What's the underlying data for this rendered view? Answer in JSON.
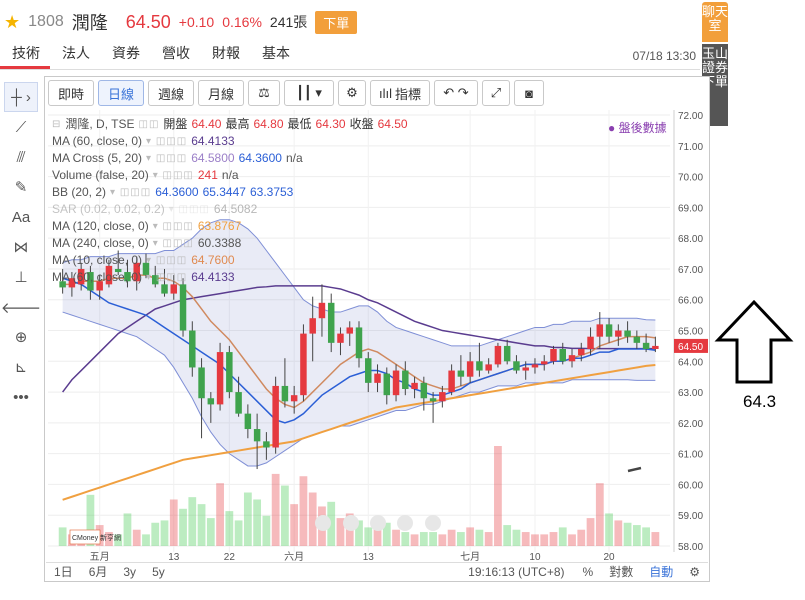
{
  "header": {
    "code": "1808",
    "name": "潤隆",
    "price": "64.50",
    "change": "+0.10",
    "change_pct": "0.16%",
    "volume": "241張",
    "order_label": "下單"
  },
  "tabs": [
    "技術",
    "法人",
    "資券",
    "營收",
    "財報",
    "基本"
  ],
  "datetime": "07/18 13:30",
  "side_tabs": {
    "chat": "聊天室",
    "order": "玉山證券下單"
  },
  "toolbar": {
    "intraday": "即時",
    "daily": "日線",
    "weekly": "週線",
    "monthly": "月線",
    "indicators": "指標"
  },
  "legend": {
    "main": {
      "label": "潤隆, D, TSE",
      "open_label": "開盤",
      "open": "64.40",
      "high_label": "最高",
      "high": "64.80",
      "low_label": "最低",
      "low": "64.30",
      "close_label": "收盤",
      "close": "64.50"
    },
    "ma60": {
      "label": "MA (60, close, 0)",
      "value": "64.4133"
    },
    "macross": {
      "label": "MA Cross (5, 20)",
      "v1": "64.5800",
      "v2": "64.3600",
      "v3": "n/a"
    },
    "volume": {
      "label": "Volume (false, 20)",
      "v1": "241",
      "v2": "n/a"
    },
    "bb": {
      "label": "BB (20, 2)",
      "v1": "64.3600",
      "v2": "65.3447",
      "v3": "63.3753"
    },
    "hidden": {
      "label": "SAR (0.02, 0.02, 0.2)",
      "value": "64.5082"
    },
    "ma120": {
      "label": "MA (120, close, 0)",
      "value": "63.8767"
    },
    "ma240": {
      "label": "MA (240, close, 0)",
      "value": "60.3388"
    },
    "ma10": {
      "label": "MA (10, close, 0)",
      "value": "64.7600"
    },
    "ma60b": {
      "label": "MA (60, close, 0)",
      "value": "64.4133"
    }
  },
  "after_hours": "盤後數據",
  "bottom": {
    "d1": "1日",
    "m6": "6月",
    "y3": "3y",
    "y5": "5y",
    "time": "19:16:13 (UTC+8)",
    "pct": "%",
    "log": "對數",
    "auto": "自動"
  },
  "annotation": "64.3",
  "watermark": "CMoney 新亨網",
  "colors": {
    "up": "#e5393f",
    "down": "#3fa34d",
    "accent": "#3a73d8",
    "bb": "#7f8fd6",
    "ma_purple": "#5a3c8f",
    "ma_blue": "#2b5fd6",
    "ma_orange": "#f0a040"
  },
  "chart_data": {
    "type": "candlestick",
    "y_ticks": [
      "72.00",
      "71.00",
      "70.00",
      "69.00",
      "68.00",
      "67.00",
      "66.00",
      "65.00",
      "64.00",
      "63.00",
      "62.00",
      "61.00",
      "60.00",
      "59.00",
      "58.00"
    ],
    "ylim": [
      58,
      72
    ],
    "x_ticks": [
      "五月",
      "13",
      "22",
      "六月",
      "13",
      "七月",
      "10",
      "20"
    ],
    "last_price_label": "64.50",
    "candles": [
      {
        "o": 66.6,
        "h": 67.0,
        "l": 66.2,
        "c": 66.4
      },
      {
        "o": 66.4,
        "h": 66.9,
        "l": 66.1,
        "c": 66.7
      },
      {
        "o": 66.5,
        "h": 67.2,
        "l": 66.3,
        "c": 67.0
      },
      {
        "o": 66.9,
        "h": 67.1,
        "l": 66.0,
        "c": 66.3
      },
      {
        "o": 66.3,
        "h": 66.8,
        "l": 66.0,
        "c": 66.6
      },
      {
        "o": 66.5,
        "h": 67.3,
        "l": 66.4,
        "c": 67.1
      },
      {
        "o": 67.0,
        "h": 67.6,
        "l": 66.8,
        "c": 66.9
      },
      {
        "o": 66.9,
        "h": 67.3,
        "l": 66.4,
        "c": 66.6
      },
      {
        "o": 66.6,
        "h": 67.4,
        "l": 66.3,
        "c": 67.2
      },
      {
        "o": 67.2,
        "h": 67.5,
        "l": 66.7,
        "c": 66.8
      },
      {
        "o": 66.8,
        "h": 67.1,
        "l": 66.4,
        "c": 66.5
      },
      {
        "o": 66.5,
        "h": 67.0,
        "l": 66.1,
        "c": 66.2
      },
      {
        "o": 66.2,
        "h": 66.8,
        "l": 66.0,
        "c": 66.5
      },
      {
        "o": 66.5,
        "h": 66.7,
        "l": 64.8,
        "c": 65.0
      },
      {
        "o": 65.0,
        "h": 65.3,
        "l": 63.5,
        "c": 63.8
      },
      {
        "o": 63.8,
        "h": 64.1,
        "l": 61.5,
        "c": 62.8
      },
      {
        "o": 62.8,
        "h": 63.0,
        "l": 62.0,
        "c": 62.6
      },
      {
        "o": 62.6,
        "h": 64.6,
        "l": 62.4,
        "c": 64.3
      },
      {
        "o": 64.3,
        "h": 64.5,
        "l": 62.8,
        "c": 63.0
      },
      {
        "o": 63.0,
        "h": 63.5,
        "l": 62.2,
        "c": 62.3
      },
      {
        "o": 62.3,
        "h": 62.6,
        "l": 61.5,
        "c": 61.8
      },
      {
        "o": 61.8,
        "h": 62.3,
        "l": 60.5,
        "c": 61.4
      },
      {
        "o": 61.4,
        "h": 61.7,
        "l": 60.8,
        "c": 61.2
      },
      {
        "o": 61.2,
        "h": 63.5,
        "l": 61.0,
        "c": 63.2
      },
      {
        "o": 63.2,
        "h": 64.1,
        "l": 62.5,
        "c": 62.7
      },
      {
        "o": 62.7,
        "h": 63.2,
        "l": 62.3,
        "c": 62.9
      },
      {
        "o": 62.9,
        "h": 65.2,
        "l": 62.7,
        "c": 64.9
      },
      {
        "o": 64.9,
        "h": 66.1,
        "l": 64.0,
        "c": 65.4
      },
      {
        "o": 65.4,
        "h": 66.5,
        "l": 64.8,
        "c": 65.9
      },
      {
        "o": 65.9,
        "h": 66.2,
        "l": 64.3,
        "c": 64.6
      },
      {
        "o": 64.6,
        "h": 65.1,
        "l": 64.2,
        "c": 64.9
      },
      {
        "o": 64.9,
        "h": 65.3,
        "l": 64.5,
        "c": 65.1
      },
      {
        "o": 65.1,
        "h": 65.3,
        "l": 63.8,
        "c": 64.1
      },
      {
        "o": 64.1,
        "h": 64.3,
        "l": 63.0,
        "c": 63.3
      },
      {
        "o": 63.3,
        "h": 63.9,
        "l": 63.0,
        "c": 63.6
      },
      {
        "o": 63.6,
        "h": 63.8,
        "l": 62.6,
        "c": 62.9
      },
      {
        "o": 62.9,
        "h": 63.9,
        "l": 62.7,
        "c": 63.7
      },
      {
        "o": 63.7,
        "h": 64.0,
        "l": 62.9,
        "c": 63.1
      },
      {
        "o": 63.1,
        "h": 63.5,
        "l": 62.8,
        "c": 63.3
      },
      {
        "o": 63.3,
        "h": 63.5,
        "l": 62.4,
        "c": 62.8
      },
      {
        "o": 62.8,
        "h": 63.0,
        "l": 62.0,
        "c": 62.7
      },
      {
        "o": 62.7,
        "h": 63.2,
        "l": 62.5,
        "c": 63.0
      },
      {
        "o": 63.0,
        "h": 63.9,
        "l": 62.9,
        "c": 63.7
      },
      {
        "o": 63.7,
        "h": 64.2,
        "l": 63.2,
        "c": 63.5
      },
      {
        "o": 63.5,
        "h": 64.3,
        "l": 63.3,
        "c": 64.0
      },
      {
        "o": 64.0,
        "h": 64.6,
        "l": 63.5,
        "c": 63.7
      },
      {
        "o": 63.7,
        "h": 64.1,
        "l": 63.6,
        "c": 63.9
      },
      {
        "o": 63.9,
        "h": 64.6,
        "l": 63.8,
        "c": 64.5
      },
      {
        "o": 64.5,
        "h": 64.7,
        "l": 63.9,
        "c": 64.0
      },
      {
        "o": 64.0,
        "h": 64.2,
        "l": 63.6,
        "c": 63.7
      },
      {
        "o": 63.7,
        "h": 64.0,
        "l": 63.4,
        "c": 63.8
      },
      {
        "o": 63.8,
        "h": 64.1,
        "l": 63.6,
        "c": 63.9
      },
      {
        "o": 63.9,
        "h": 64.2,
        "l": 63.7,
        "c": 64.0
      },
      {
        "o": 64.0,
        "h": 64.5,
        "l": 63.9,
        "c": 64.4
      },
      {
        "o": 64.4,
        "h": 64.6,
        "l": 63.9,
        "c": 64.0
      },
      {
        "o": 64.0,
        "h": 64.4,
        "l": 63.8,
        "c": 64.2
      },
      {
        "o": 64.2,
        "h": 64.6,
        "l": 64.0,
        "c": 64.4
      },
      {
        "o": 64.4,
        "h": 65.1,
        "l": 64.2,
        "c": 64.8
      },
      {
        "o": 64.8,
        "h": 65.6,
        "l": 64.4,
        "c": 65.2
      },
      {
        "o": 65.2,
        "h": 65.4,
        "l": 64.6,
        "c": 64.8
      },
      {
        "o": 64.8,
        "h": 65.2,
        "l": 64.5,
        "c": 65.0
      },
      {
        "o": 65.0,
        "h": 65.3,
        "l": 64.6,
        "c": 64.8
      },
      {
        "o": 64.8,
        "h": 65.0,
        "l": 64.4,
        "c": 64.6
      },
      {
        "o": 64.6,
        "h": 64.9,
        "l": 64.3,
        "c": 64.4
      },
      {
        "o": 64.4,
        "h": 64.8,
        "l": 64.3,
        "c": 64.5
      }
    ],
    "volumes": [
      0.8,
      0.5,
      0.6,
      2.2,
      0.9,
      0.6,
      0.5,
      1.4,
      0.7,
      0.5,
      1.0,
      1.1,
      2.0,
      1.6,
      2.1,
      1.8,
      1.2,
      2.7,
      1.5,
      1.1,
      2.3,
      2.0,
      1.3,
      3.1,
      2.6,
      1.8,
      3.0,
      2.3,
      1.7,
      1.9,
      1.2,
      1.4,
      1.1,
      0.8,
      0.9,
      1.0,
      0.7,
      0.6,
      0.5,
      0.6,
      0.6,
      0.5,
      0.7,
      0.6,
      0.8,
      0.7,
      0.6,
      4.3,
      0.9,
      0.7,
      0.6,
      0.5,
      0.5,
      0.6,
      0.8,
      0.5,
      0.7,
      1.2,
      2.7,
      1.4,
      1.1,
      1.0,
      0.9,
      0.8,
      0.6
    ],
    "series": [
      {
        "name": "MA (60, close, 0)",
        "values": [
          63.0,
          63.4,
          63.7,
          64.0,
          64.3,
          64.6,
          64.9,
          65.1,
          65.3,
          65.5,
          65.7,
          65.8,
          65.9,
          66.0,
          66.05,
          66.1,
          66.15,
          66.2,
          66.25,
          66.3,
          66.35,
          66.4,
          66.42,
          66.45,
          66.45,
          66.45,
          66.45,
          66.45,
          66.45,
          66.4,
          66.35,
          66.25,
          66.15,
          66.0,
          65.9,
          65.75,
          65.6,
          65.45,
          65.3,
          65.2,
          65.1,
          65.0,
          64.95,
          64.9,
          64.85,
          64.8,
          64.75,
          64.7,
          64.65,
          64.6,
          64.55,
          64.5,
          64.5,
          64.45,
          64.45,
          64.42,
          64.42,
          64.41,
          64.41,
          64.41,
          64.41,
          64.41,
          64.41,
          64.41,
          64.41
        ]
      },
      {
        "name": "MA (120, close, 0)",
        "values": [
          59.5,
          59.6,
          59.7,
          59.8,
          59.9,
          60.0,
          60.1,
          60.2,
          60.3,
          60.4,
          60.5,
          60.6,
          60.7,
          60.8,
          60.85,
          60.9,
          60.95,
          61.0,
          61.05,
          61.1,
          61.15,
          61.2,
          61.25,
          61.3,
          61.35,
          61.4,
          61.5,
          61.6,
          61.7,
          61.8,
          61.9,
          62.0,
          62.1,
          62.2,
          62.3,
          62.4,
          62.5,
          62.55,
          62.6,
          62.65,
          62.7,
          62.75,
          62.8,
          62.85,
          62.9,
          62.95,
          63.0,
          63.05,
          63.1,
          63.15,
          63.2,
          63.25,
          63.3,
          63.35,
          63.4,
          63.45,
          63.5,
          63.55,
          63.6,
          63.65,
          63.7,
          63.75,
          63.8,
          63.85,
          63.88
        ]
      },
      {
        "name": "MA (10, close, 0)",
        "values": [
          66.5,
          66.5,
          66.6,
          66.6,
          66.6,
          66.7,
          66.7,
          66.7,
          66.8,
          66.8,
          66.7,
          66.7,
          66.6,
          66.4,
          66.1,
          65.7,
          65.3,
          65.0,
          64.7,
          64.3,
          63.9,
          63.5,
          63.1,
          62.8,
          62.6,
          62.5,
          62.7,
          63.0,
          63.3,
          63.6,
          63.9,
          64.1,
          64.3,
          64.4,
          64.3,
          64.1,
          63.9,
          63.7,
          63.5,
          63.3,
          63.2,
          63.1,
          63.1,
          63.2,
          63.3,
          63.4,
          63.5,
          63.6,
          63.7,
          63.8,
          63.9,
          63.9,
          63.9,
          64.0,
          64.0,
          64.1,
          64.2,
          64.3,
          64.5,
          64.6,
          64.7,
          64.8,
          64.8,
          64.8,
          64.76
        ]
      },
      {
        "name": "MA Cross (5, 20)",
        "values": [
          66.7,
          66.6,
          66.5,
          66.3,
          66.1,
          65.9,
          65.8,
          65.7,
          65.6,
          65.5,
          65.3,
          65.1,
          64.9,
          64.7,
          64.5,
          64.3,
          64.1,
          63.9,
          63.6,
          63.3,
          63.0,
          62.7,
          62.4,
          62.1,
          62.0,
          62.1,
          62.3,
          62.6,
          62.9,
          63.1,
          63.3,
          63.5,
          63.6,
          63.7,
          63.7,
          63.6,
          63.4,
          63.3,
          63.1,
          63.0,
          62.9,
          62.9,
          63.0,
          63.1,
          63.3,
          63.4,
          63.5,
          63.6,
          63.7,
          63.8,
          63.9,
          63.9,
          63.9,
          64.0,
          64.0,
          64.1,
          64.1,
          64.2,
          64.3,
          64.3,
          64.4,
          64.4,
          64.4,
          64.4,
          64.36
        ]
      },
      {
        "name": "BB (20, 2) upper",
        "values": [
          67.2,
          67.3,
          67.3,
          67.4,
          67.4,
          67.4,
          67.5,
          67.5,
          67.5,
          67.5,
          67.5,
          67.6,
          67.6,
          67.8,
          68.0,
          68.3,
          68.5,
          68.6,
          68.6,
          68.5,
          68.3,
          68.0,
          67.6,
          67.2,
          66.8,
          66.4,
          66.0,
          65.8,
          65.7,
          65.6,
          65.6,
          65.7,
          65.8,
          65.8,
          65.6,
          65.3,
          65.1,
          65.0,
          64.9,
          64.8,
          64.7,
          64.6,
          64.5,
          64.5,
          64.5,
          64.5,
          64.6,
          64.7,
          64.8,
          64.9,
          65.0,
          65.1,
          65.1,
          65.2,
          65.2,
          65.3,
          65.3,
          65.3,
          65.4,
          65.4,
          65.4,
          65.4,
          65.4,
          65.35,
          65.34
        ]
      },
      {
        "name": "BB (20, 2) lower",
        "values": [
          65.6,
          65.5,
          65.4,
          65.3,
          65.2,
          65.1,
          65.0,
          64.9,
          64.8,
          64.6,
          64.4,
          64.2,
          63.8,
          63.3,
          62.8,
          62.2,
          61.7,
          61.3,
          61.0,
          60.8,
          60.6,
          60.6,
          60.7,
          60.9,
          61.1,
          61.3,
          61.5,
          61.6,
          61.7,
          61.8,
          61.9,
          61.9,
          62.0,
          62.1,
          62.2,
          62.3,
          62.4,
          62.4,
          62.5,
          62.6,
          62.6,
          62.7,
          62.8,
          62.9,
          63.0,
          63.0,
          63.1,
          63.2,
          63.2,
          63.2,
          63.3,
          63.3,
          63.3,
          63.3,
          63.3,
          63.4,
          63.4,
          63.4,
          63.4,
          63.4,
          63.4,
          63.4,
          63.38,
          63.38,
          63.38
        ]
      }
    ]
  }
}
